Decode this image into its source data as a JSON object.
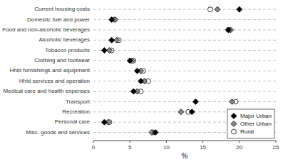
{
  "chart_data": {
    "type": "dot",
    "categories": [
      "Current housing costs",
      "Domestic fuel and power",
      "Food and non-alcoholic beverages",
      "Alcoholic beverages",
      "Tobacco products",
      "Clothing and footwear",
      "Hhld furnishings and equipment",
      "Hhld services and operation",
      "Medical care and health expenses",
      "Transport",
      "Recreation",
      "Personal care",
      "Misc. goods and services"
    ],
    "series": [
      {
        "name": "Major Urban",
        "color": "#000000",
        "marker": "diamond",
        "values": [
          20.0,
          2.5,
          18.5,
          2.5,
          1.5,
          5.0,
          6.0,
          6.5,
          5.5,
          14.0,
          13.5,
          1.5,
          8.5
        ]
      },
      {
        "name": "Other Urban",
        "color": "#888888",
        "marker": "diamond",
        "values": [
          17.0,
          3.0,
          18.8,
          3.2,
          2.2,
          5.3,
          6.5,
          7.0,
          6.0,
          19.0,
          12.0,
          2.0,
          8.0
        ]
      },
      {
        "name": "Rural",
        "color": "#ffffff",
        "marker": "circle",
        "values": [
          16.0,
          2.8,
          18.5,
          3.5,
          2.5,
          5.5,
          6.8,
          7.5,
          6.5,
          19.5,
          13.0,
          2.2,
          8.2
        ]
      }
    ],
    "xlim": [
      0,
      25
    ],
    "xticks": [
      0,
      5,
      10,
      15,
      20,
      25
    ],
    "xlabel": "%",
    "grid": true,
    "legend": "lower right"
  }
}
